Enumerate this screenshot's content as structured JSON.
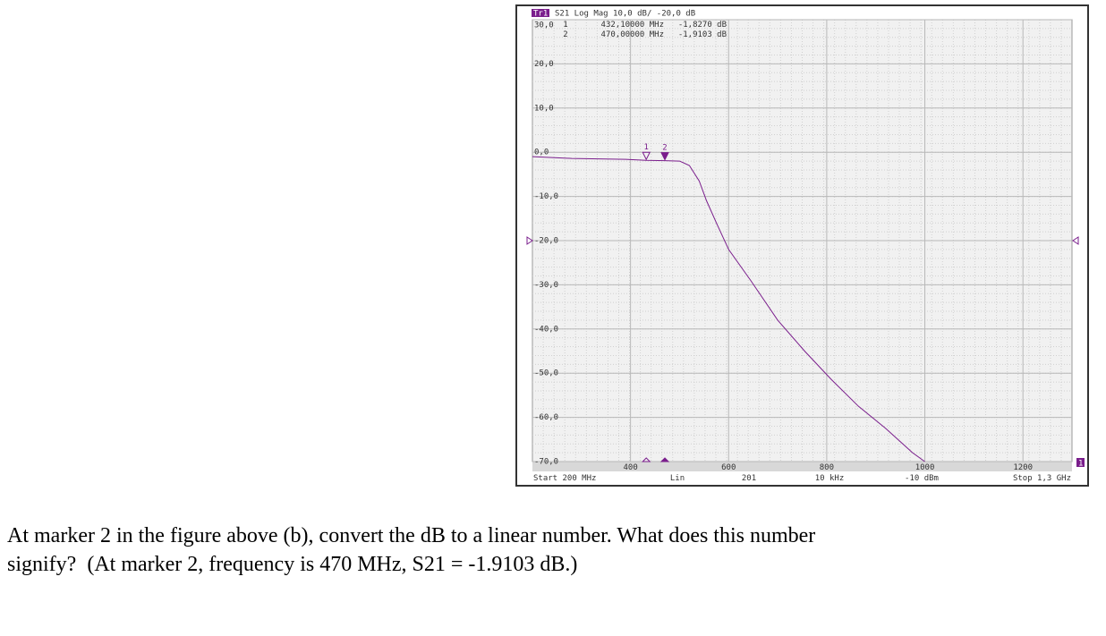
{
  "chart_data": {
    "type": "line",
    "trace": "Tr1",
    "header": "S21 Log Mag 10,0 dB/ -20,0 dB",
    "color": "#7a1e8c",
    "x": [
      200,
      280,
      390,
      432.1,
      470,
      500,
      520,
      540,
      555,
      575,
      600,
      645,
      700,
      755,
      810,
      865,
      920,
      975,
      1000
    ],
    "values": [
      -1.0,
      -1.4,
      -1.6,
      -1.827,
      -1.9103,
      -2.0,
      -3,
      -6.5,
      -11,
      -16,
      -22,
      -29,
      -38,
      -45,
      -51.5,
      -57.5,
      -62.5,
      -68,
      -70
    ],
    "xlim": [
      200,
      1300
    ],
    "xticks": [
      400,
      600,
      800,
      1000,
      1200
    ],
    "ylim": [
      -70,
      30
    ],
    "yticks": [
      {
        "value": 30,
        "label": "30,0"
      },
      {
        "value": 20,
        "label": "20,0"
      },
      {
        "value": 10,
        "label": "10,0"
      },
      {
        "value": 0,
        "label": "0,0"
      },
      {
        "value": -10,
        "label": "-10,0"
      },
      {
        "value": -20,
        "label": "-20,0"
      },
      {
        "value": -30,
        "label": "-30,0"
      },
      {
        "value": -40,
        "label": "-40,0"
      },
      {
        "value": -50,
        "label": "-50,0"
      },
      {
        "value": -60,
        "label": "-60,0"
      },
      {
        "value": -70,
        "label": "-70,0"
      }
    ],
    "reference": -20,
    "grid": true,
    "markers": [
      {
        "label": "1",
        "x": 432.1,
        "y": -1.827,
        "x_label": "432,10000 MHz",
        "y_label": "-1,8270 dB"
      },
      {
        "label": "2",
        "x": 470,
        "y": -1.9103,
        "x_label": "470,00000 MHz",
        "y_label": "-1,9103 dB"
      }
    ],
    "footer": [
      "Start 200 MHz",
      "Lin",
      "201",
      "10 kHz",
      "-10 dBm",
      "Stop 1,3 GHz"
    ],
    "channel": "1"
  },
  "question": [
    "At marker 2 in the figure above (b), convert the dB to a linear number. What does this number",
    "signify?  (At marker 2, frequency is 470 MHz, S21 = -1.9103 dB.)"
  ]
}
